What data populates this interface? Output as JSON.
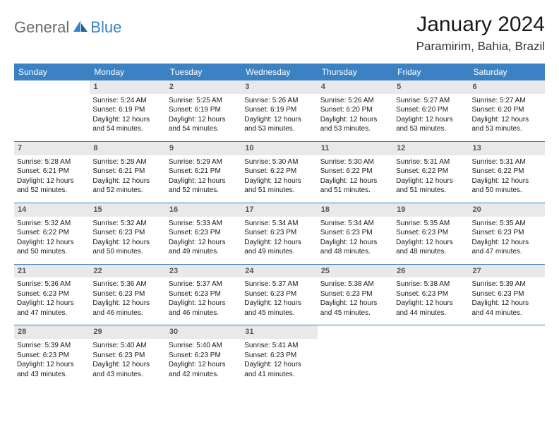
{
  "brand": {
    "word1": "General",
    "word2": "Blue"
  },
  "title": "January 2024",
  "location": "Paramirim, Bahia, Brazil",
  "colors": {
    "header_bg": "#3b82c4",
    "header_text": "#ffffff",
    "daynum_bg": "#e9e9e9",
    "daynum_text": "#555555",
    "border": "#3b82c4",
    "brand_gray": "#6b6b6b",
    "brand_blue": "#3b82c4"
  },
  "dow": [
    "Sunday",
    "Monday",
    "Tuesday",
    "Wednesday",
    "Thursday",
    "Friday",
    "Saturday"
  ],
  "weeks": [
    [
      null,
      {
        "n": "1",
        "sr": "5:24 AM",
        "ss": "6:19 PM",
        "dl": "12 hours and 54 minutes."
      },
      {
        "n": "2",
        "sr": "5:25 AM",
        "ss": "6:19 PM",
        "dl": "12 hours and 54 minutes."
      },
      {
        "n": "3",
        "sr": "5:26 AM",
        "ss": "6:19 PM",
        "dl": "12 hours and 53 minutes."
      },
      {
        "n": "4",
        "sr": "5:26 AM",
        "ss": "6:20 PM",
        "dl": "12 hours and 53 minutes."
      },
      {
        "n": "5",
        "sr": "5:27 AM",
        "ss": "6:20 PM",
        "dl": "12 hours and 53 minutes."
      },
      {
        "n": "6",
        "sr": "5:27 AM",
        "ss": "6:20 PM",
        "dl": "12 hours and 53 minutes."
      }
    ],
    [
      {
        "n": "7",
        "sr": "5:28 AM",
        "ss": "6:21 PM",
        "dl": "12 hours and 52 minutes."
      },
      {
        "n": "8",
        "sr": "5:28 AM",
        "ss": "6:21 PM",
        "dl": "12 hours and 52 minutes."
      },
      {
        "n": "9",
        "sr": "5:29 AM",
        "ss": "6:21 PM",
        "dl": "12 hours and 52 minutes."
      },
      {
        "n": "10",
        "sr": "5:30 AM",
        "ss": "6:22 PM",
        "dl": "12 hours and 51 minutes."
      },
      {
        "n": "11",
        "sr": "5:30 AM",
        "ss": "6:22 PM",
        "dl": "12 hours and 51 minutes."
      },
      {
        "n": "12",
        "sr": "5:31 AM",
        "ss": "6:22 PM",
        "dl": "12 hours and 51 minutes."
      },
      {
        "n": "13",
        "sr": "5:31 AM",
        "ss": "6:22 PM",
        "dl": "12 hours and 50 minutes."
      }
    ],
    [
      {
        "n": "14",
        "sr": "5:32 AM",
        "ss": "6:22 PM",
        "dl": "12 hours and 50 minutes."
      },
      {
        "n": "15",
        "sr": "5:32 AM",
        "ss": "6:23 PM",
        "dl": "12 hours and 50 minutes."
      },
      {
        "n": "16",
        "sr": "5:33 AM",
        "ss": "6:23 PM",
        "dl": "12 hours and 49 minutes."
      },
      {
        "n": "17",
        "sr": "5:34 AM",
        "ss": "6:23 PM",
        "dl": "12 hours and 49 minutes."
      },
      {
        "n": "18",
        "sr": "5:34 AM",
        "ss": "6:23 PM",
        "dl": "12 hours and 48 minutes."
      },
      {
        "n": "19",
        "sr": "5:35 AM",
        "ss": "6:23 PM",
        "dl": "12 hours and 48 minutes."
      },
      {
        "n": "20",
        "sr": "5:35 AM",
        "ss": "6:23 PM",
        "dl": "12 hours and 47 minutes."
      }
    ],
    [
      {
        "n": "21",
        "sr": "5:36 AM",
        "ss": "6:23 PM",
        "dl": "12 hours and 47 minutes."
      },
      {
        "n": "22",
        "sr": "5:36 AM",
        "ss": "6:23 PM",
        "dl": "12 hours and 46 minutes."
      },
      {
        "n": "23",
        "sr": "5:37 AM",
        "ss": "6:23 PM",
        "dl": "12 hours and 46 minutes."
      },
      {
        "n": "24",
        "sr": "5:37 AM",
        "ss": "6:23 PM",
        "dl": "12 hours and 45 minutes."
      },
      {
        "n": "25",
        "sr": "5:38 AM",
        "ss": "6:23 PM",
        "dl": "12 hours and 45 minutes."
      },
      {
        "n": "26",
        "sr": "5:38 AM",
        "ss": "6:23 PM",
        "dl": "12 hours and 44 minutes."
      },
      {
        "n": "27",
        "sr": "5:39 AM",
        "ss": "6:23 PM",
        "dl": "12 hours and 44 minutes."
      }
    ],
    [
      {
        "n": "28",
        "sr": "5:39 AM",
        "ss": "6:23 PM",
        "dl": "12 hours and 43 minutes."
      },
      {
        "n": "29",
        "sr": "5:40 AM",
        "ss": "6:23 PM",
        "dl": "12 hours and 43 minutes."
      },
      {
        "n": "30",
        "sr": "5:40 AM",
        "ss": "6:23 PM",
        "dl": "12 hours and 42 minutes."
      },
      {
        "n": "31",
        "sr": "5:41 AM",
        "ss": "6:23 PM",
        "dl": "12 hours and 41 minutes."
      },
      null,
      null,
      null
    ]
  ],
  "labels": {
    "sunrise": "Sunrise: ",
    "sunset": "Sunset: ",
    "daylight": "Daylight: "
  }
}
